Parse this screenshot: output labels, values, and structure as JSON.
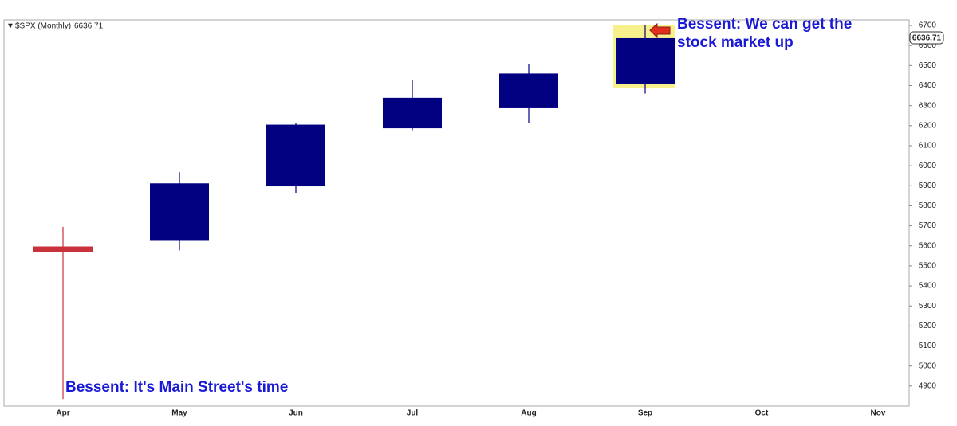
{
  "chart_data": {
    "type": "candlestick",
    "legend_label": "$SPX (Monthly)",
    "last_price": 6636.71,
    "categories": [
      "Apr",
      "May",
      "Jun",
      "Jul",
      "Aug",
      "Sep",
      "Oct",
      "Nov"
    ],
    "open": [
      5597,
      5625,
      5897,
      6187,
      6287,
      6409,
      null,
      null
    ],
    "high": [
      5695,
      5968,
      6215,
      6427,
      6508,
      6700,
      null,
      null
    ],
    "low": [
      4835,
      5578,
      5862,
      6177,
      6212,
      6360,
      null,
      null
    ],
    "close": [
      5569,
      5912,
      6205,
      6339,
      6460,
      6636.71,
      null,
      null
    ],
    "up_color": "#000080",
    "down_color": "#c8323c",
    "ylim": [
      4800,
      6728
    ],
    "yticks": [
      4900,
      5000,
      5100,
      5200,
      5300,
      5400,
      5500,
      5600,
      5700,
      5800,
      5900,
      6000,
      6100,
      6200,
      6300,
      6400,
      6500,
      6600,
      6700
    ],
    "annotations": [
      "Bessent: It's Main Street's time",
      "Bessent: We can get the stock market up"
    ]
  }
}
